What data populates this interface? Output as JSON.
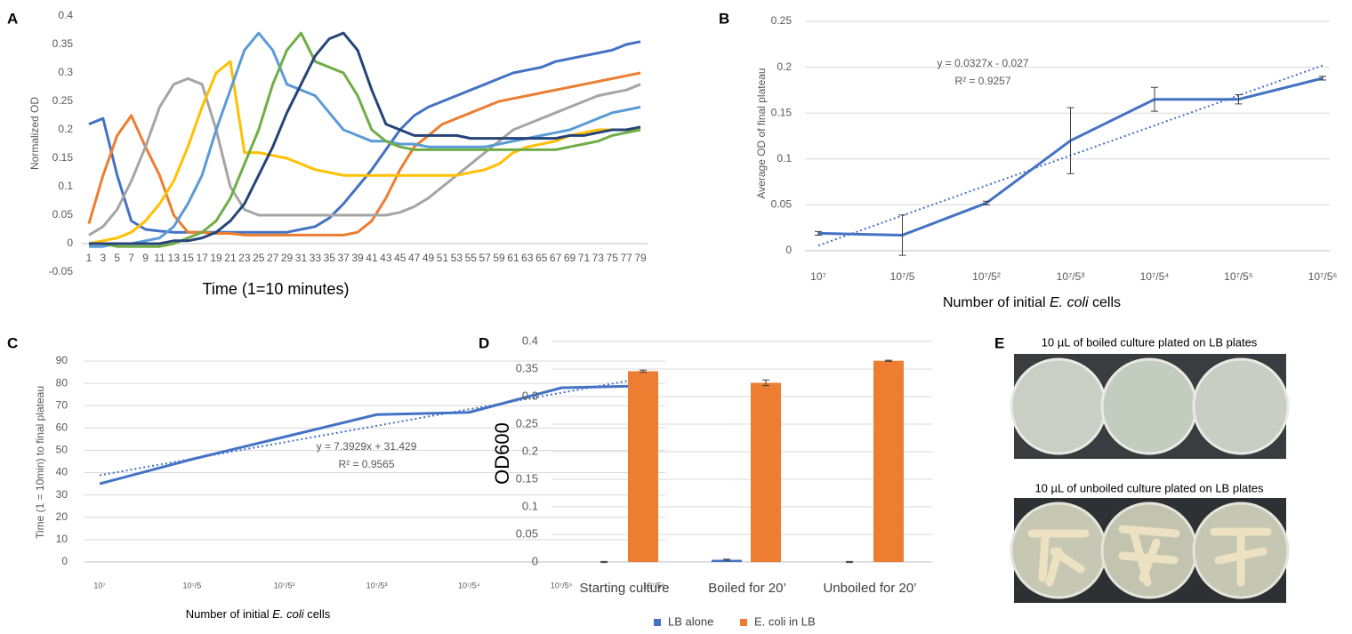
{
  "chart_data": [
    {
      "panel": "A",
      "type": "line",
      "y_label": "Normalized OD",
      "x_label": [
        "Time (1=10 minutes)"
      ],
      "x": [
        1,
        3,
        5,
        7,
        9,
        11,
        13,
        15,
        17,
        19,
        21,
        23,
        25,
        27,
        29,
        31,
        33,
        35,
        37,
        39,
        41,
        43,
        45,
        47,
        49,
        51,
        53,
        55,
        57,
        59,
        61,
        63,
        65,
        67,
        69,
        71,
        73,
        75,
        77,
        79
      ],
      "xlim": [
        0,
        80
      ],
      "xticks": [
        1,
        3,
        5,
        7,
        9,
        11,
        13,
        15,
        17,
        19,
        21,
        23,
        25,
        27,
        29,
        31,
        33,
        35,
        37,
        39,
        41,
        43,
        45,
        47,
        49,
        51,
        53,
        55,
        57,
        59,
        61,
        63,
        65,
        67,
        69,
        71,
        73,
        75,
        77,
        79
      ],
      "ylim": [
        -0.05,
        0.4
      ],
      "yticks": [
        -0.05,
        0,
        0.05,
        0.1,
        0.15,
        0.2,
        0.25,
        0.3,
        0.35,
        0.4
      ],
      "grid": false,
      "series": [
        {
          "color": "#4472c4",
          "values": [
            0.21,
            0.22,
            0.12,
            0.04,
            0.025,
            0.022,
            0.02,
            0.02,
            0.02,
            0.02,
            0.02,
            0.02,
            0.02,
            0.02,
            0.02,
            0.025,
            0.03,
            0.045,
            0.07,
            0.1,
            0.13,
            0.165,
            0.2,
            0.225,
            0.24,
            0.25,
            0.26,
            0.27,
            0.28,
            0.29,
            0.3,
            0.305,
            0.31,
            0.32,
            0.325,
            0.33,
            0.335,
            0.34,
            0.35,
            0.355
          ]
        },
        {
          "color": "#ed7d31",
          "values": [
            0.035,
            0.12,
            0.19,
            0.225,
            0.17,
            0.12,
            0.05,
            0.02,
            0.02,
            0.018,
            0.018,
            0.015,
            0.015,
            0.015,
            0.015,
            0.015,
            0.015,
            0.015,
            0.015,
            0.02,
            0.04,
            0.08,
            0.13,
            0.17,
            0.19,
            0.21,
            0.22,
            0.23,
            0.24,
            0.25,
            0.255,
            0.26,
            0.265,
            0.27,
            0.275,
            0.28,
            0.285,
            0.29,
            0.295,
            0.3
          ]
        },
        {
          "color": "#a5a5a5",
          "values": [
            0.015,
            0.03,
            0.06,
            0.11,
            0.17,
            0.24,
            0.28,
            0.29,
            0.28,
            0.2,
            0.1,
            0.06,
            0.05,
            0.05,
            0.05,
            0.05,
            0.05,
            0.05,
            0.05,
            0.05,
            0.05,
            0.05,
            0.055,
            0.065,
            0.08,
            0.1,
            0.12,
            0.14,
            0.16,
            0.18,
            0.2,
            0.21,
            0.22,
            0.23,
            0.24,
            0.25,
            0.26,
            0.265,
            0.27,
            0.28
          ]
        },
        {
          "color": "#ffc000",
          "values": [
            0,
            0.005,
            0.01,
            0.02,
            0.04,
            0.07,
            0.11,
            0.17,
            0.24,
            0.3,
            0.32,
            0.16,
            0.16,
            0.155,
            0.15,
            0.14,
            0.13,
            0.125,
            0.12,
            0.12,
            0.12,
            0.12,
            0.12,
            0.12,
            0.12,
            0.12,
            0.12,
            0.125,
            0.13,
            0.14,
            0.16,
            0.17,
            0.175,
            0.18,
            0.19,
            0.195,
            0.2,
            0.2,
            0.2,
            0.2
          ]
        },
        {
          "color": "#5b9bd5",
          "values": [
            -0.005,
            -0.005,
            0,
            0,
            0.005,
            0.01,
            0.03,
            0.07,
            0.12,
            0.2,
            0.27,
            0.34,
            0.37,
            0.34,
            0.28,
            0.27,
            0.26,
            0.23,
            0.2,
            0.19,
            0.18,
            0.18,
            0.175,
            0.175,
            0.17,
            0.17,
            0.17,
            0.17,
            0.17,
            0.175,
            0.18,
            0.185,
            0.19,
            0.195,
            0.2,
            0.21,
            0.22,
            0.23,
            0.235,
            0.24
          ]
        },
        {
          "color": "#70ad47",
          "values": [
            0,
            0,
            -0.005,
            -0.005,
            -0.005,
            -0.005,
            0,
            0.01,
            0.02,
            0.04,
            0.08,
            0.14,
            0.2,
            0.28,
            0.34,
            0.37,
            0.32,
            0.31,
            0.3,
            0.26,
            0.2,
            0.18,
            0.17,
            0.165,
            0.165,
            0.165,
            0.165,
            0.165,
            0.165,
            0.165,
            0.165,
            0.165,
            0.165,
            0.165,
            0.17,
            0.175,
            0.18,
            0.19,
            0.195,
            0.2
          ]
        },
        {
          "color": "#264478",
          "values": [
            0,
            0,
            0,
            0,
            0,
            0,
            0.005,
            0.005,
            0.01,
            0.02,
            0.04,
            0.07,
            0.12,
            0.17,
            0.23,
            0.28,
            0.33,
            0.36,
            0.37,
            0.34,
            0.27,
            0.21,
            0.2,
            0.19,
            0.19,
            0.19,
            0.19,
            0.185,
            0.185,
            0.185,
            0.185,
            0.185,
            0.185,
            0.185,
            0.19,
            0.19,
            0.195,
            0.2,
            0.2,
            0.205
          ]
        }
      ]
    },
    {
      "panel": "B",
      "type": "line",
      "y_label": "Average OD of final plateau",
      "x_label": [
        "Number of initial ",
        "E. coli",
        " cells"
      ],
      "categories": [
        "10⁷",
        "10⁷/5",
        "10⁷/5²",
        "10⁷/5³",
        "10⁷/5⁴",
        "10⁷/5⁵",
        "10⁷/5⁶"
      ],
      "ylim": [
        0,
        0.25
      ],
      "yticks": [
        0,
        0.05,
        0.1,
        0.15,
        0.2,
        0.25
      ],
      "grid": true,
      "series": [
        {
          "color": "#4472c4",
          "values": [
            0.019,
            0.017,
            0.052,
            0.12,
            0.165,
            0.165,
            0.188
          ],
          "errors": [
            0.002,
            0.022,
            0.002,
            0.036,
            0.013,
            0.005,
            0.002
          ]
        }
      ],
      "trendline": {
        "equation": "y = 0.0327x - 0.027",
        "r_squared": "R² = 0.9257",
        "slope": 0.0327,
        "intercept": -0.027
      }
    },
    {
      "panel": "C",
      "type": "line",
      "y_label": "Time (1 = 10min) to final plateau",
      "x_label": [
        "Number of initial ",
        "E. coli",
        " cells"
      ],
      "categories": [
        "10⁷",
        "10⁷/5",
        "10⁷/5²",
        "10⁷/5³",
        "10⁷/5⁴",
        "10⁷/5⁵",
        "10⁷/5⁶"
      ],
      "ylim": [
        0,
        90
      ],
      "yticks": [
        0,
        10,
        20,
        30,
        40,
        50,
        60,
        70,
        80,
        90
      ],
      "grid": true,
      "series": [
        {
          "color": "#4472c4",
          "values": [
            35,
            46,
            56,
            66,
            67,
            78,
            79
          ]
        }
      ],
      "trendline": {
        "equation": "y = 7.3929x + 31.429",
        "r_squared": "R² = 0.9565",
        "slope": 7.3929,
        "intercept": 31.429
      }
    },
    {
      "panel": "D",
      "type": "bar",
      "y_label": "OD600",
      "categories": [
        "Starting culture",
        "Boiled for 20’",
        "Unboiled for 20’"
      ],
      "ylim": [
        0,
        0.4
      ],
      "yticks": [
        0,
        0.05,
        0.1,
        0.15,
        0.2,
        0.25,
        0.3,
        0.35,
        0.4
      ],
      "grid": true,
      "series": [
        {
          "name": "LB alone",
          "color": "#4472c4",
          "values": [
            0,
            0.004,
            0
          ],
          "errors": [
            0.001,
            0.001,
            0.001
          ]
        },
        {
          "name": "E. coli in LB",
          "color": "#ed7d31",
          "values": [
            0.346,
            0.325,
            0.365
          ],
          "errors": [
            0.002,
            0.005,
            0.001
          ]
        }
      ]
    }
  ],
  "panel_e": {
    "panel": "E",
    "captions": [
      "10 µL of boiled culture plated on LB plates",
      "10 µL of unboiled culture plated on LB plates"
    ]
  }
}
